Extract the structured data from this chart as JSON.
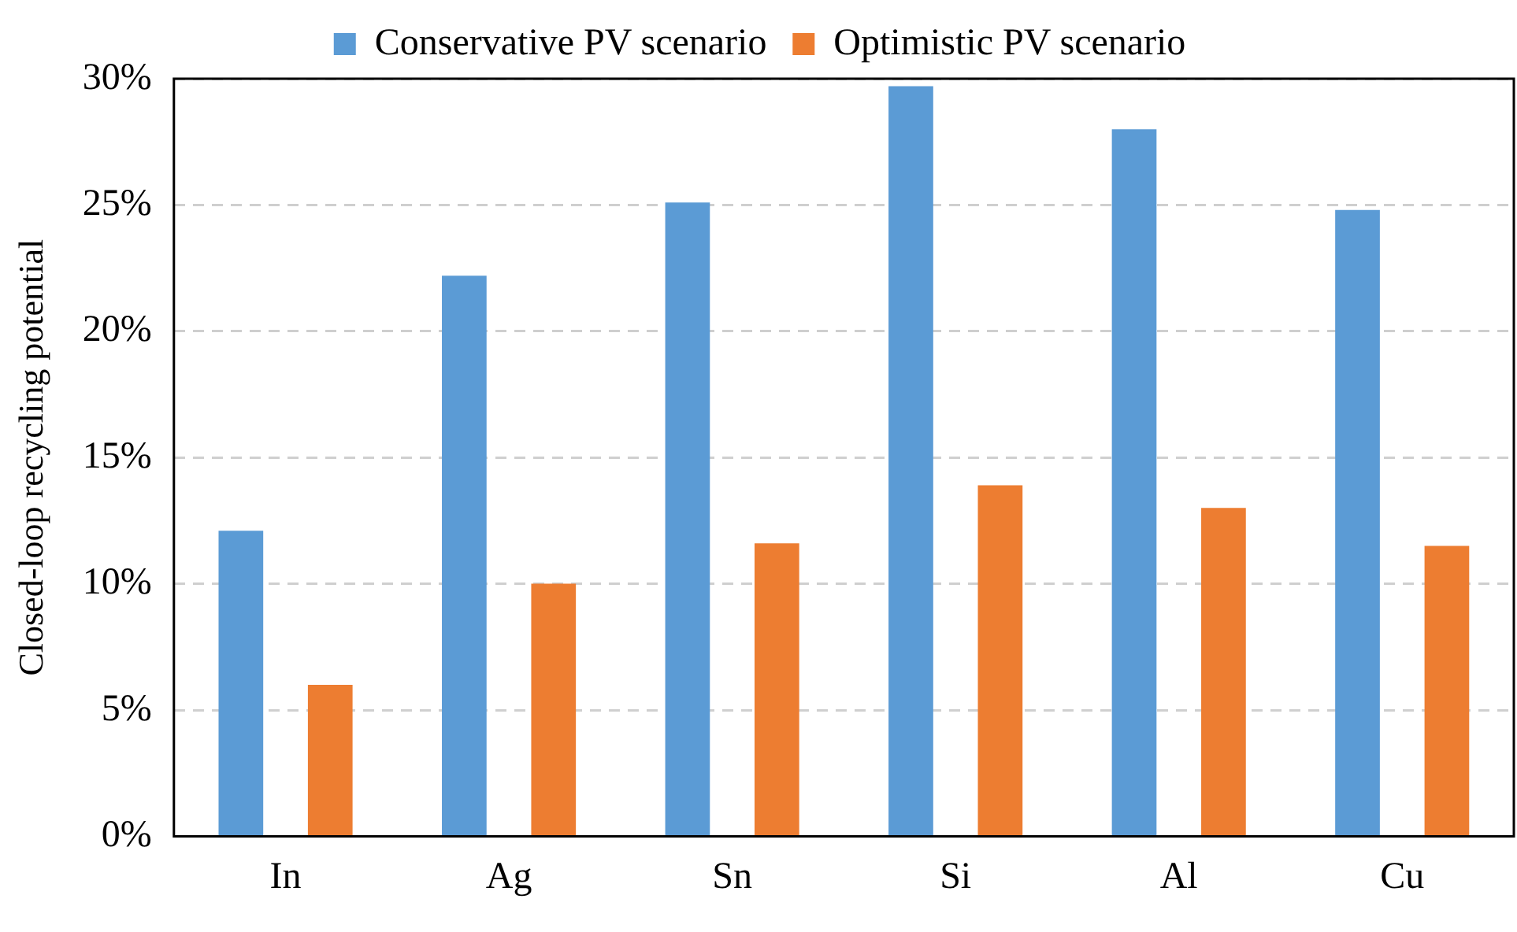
{
  "chart_data": {
    "type": "bar",
    "ylabel": "Closed-loop recycling potential",
    "categories": [
      "In",
      "Ag",
      "Sn",
      "Si",
      "Al",
      "Cu"
    ],
    "series": [
      {
        "name": "Conservative PV scenario",
        "color": "#5b9bd5",
        "values": [
          12.1,
          22.2,
          25.1,
          29.7,
          28.0,
          24.8
        ]
      },
      {
        "name": "Optimistic PV scenario",
        "color": "#ed7d31",
        "values": [
          6.0,
          10.0,
          11.6,
          13.9,
          13.0,
          11.5
        ]
      }
    ],
    "ylim": [
      0,
      30
    ],
    "yticks": [
      {
        "value": 0,
        "label": "0%"
      },
      {
        "value": 5,
        "label": "5%"
      },
      {
        "value": 10,
        "label": "10%"
      },
      {
        "value": 15,
        "label": "15%"
      },
      {
        "value": 20,
        "label": "20%"
      },
      {
        "value": 25,
        "label": "25%"
      },
      {
        "value": 30,
        "label": "30%"
      }
    ],
    "grid": "y",
    "legend": "top"
  }
}
